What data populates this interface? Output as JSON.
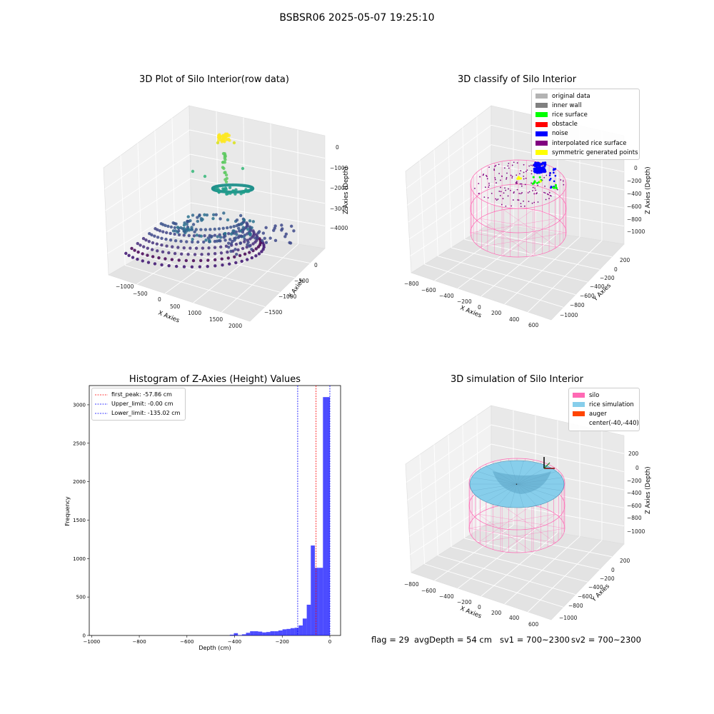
{
  "figure": {
    "title": "BSBSR06 2025-05-07 19:25:10"
  },
  "colors": {
    "pink_wire": "#ff69b4",
    "hist_bar": "#0000ff",
    "peak_line": "#ff0000",
    "limit_line": "#0000ff"
  },
  "chart_data": [
    {
      "type": "scatter",
      "title": "3D Plot of Silo Interior(row data)",
      "projection": "3d",
      "xlabel": "X Axies",
      "ylabel": "Y Axies",
      "zlabel": "Z Axies (Depth)",
      "x_ticks": [
        "−1000",
        "−500",
        "0",
        "500",
        "1000",
        "1500",
        "2000"
      ],
      "y_ticks": [
        "0",
        "−500",
        "−1000",
        "−1500"
      ],
      "z_ticks": [
        "0",
        "−1000",
        "−2000",
        "−3000",
        "−4000"
      ],
      "xlim": [
        -1300,
        2100
      ],
      "ylim": [
        -1800,
        300
      ],
      "zlim": [
        -5000,
        300
      ],
      "colormap": "viridis (by depth)",
      "clusters": [
        {
          "description": "yellow cluster near top",
          "approx_z": 0
        },
        {
          "description": "green rising points",
          "approx_z": -1000
        },
        {
          "description": "teal ring",
          "approx_z": -2000
        },
        {
          "description": "blue/purple wall rings",
          "approx_z": [
            -2800,
            -4000
          ]
        }
      ]
    },
    {
      "type": "scatter",
      "title": "3D classify of Silo Interior",
      "projection": "3d",
      "xlabel": "X Axies",
      "ylabel": "Y Axies",
      "zlabel": "Z Axies (Depth)",
      "x_ticks": [
        "−800",
        "−600",
        "−400",
        "−200",
        "0",
        "200",
        "400",
        "600"
      ],
      "y_ticks": [
        "200",
        "0",
        "−200",
        "−400",
        "−600",
        "−800",
        "−1000"
      ],
      "z_ticks": [
        "0",
        "−200",
        "−400",
        "−600",
        "−800",
        "−1000"
      ],
      "legend": [
        "original data",
        "inner wall",
        "rice surface",
        "obstacle",
        "noise",
        "interpolated rice surface",
        "symmetric generated points"
      ],
      "legend_colors": [
        "#b3b3b3",
        "#808080",
        "#00ff00",
        "#ff0000",
        "#0000ff",
        "#800080",
        "#ffff00"
      ]
    },
    {
      "type": "bar",
      "title": "Histogram of Z-Axies (Height) Values",
      "xlabel": "Depth (cm)",
      "ylabel": "Frequency",
      "xlim": [
        -1010,
        45
      ],
      "ylim": [
        0,
        3250
      ],
      "x_ticks": [
        -1000,
        -800,
        -600,
        -400,
        -200,
        0
      ],
      "y_ticks": [
        0,
        500,
        1000,
        1500,
        2000,
        2500,
        3000
      ],
      "bins": [
        {
          "start": -420,
          "end": -403,
          "value": 10
        },
        {
          "start": -403,
          "end": -386,
          "value": 30
        },
        {
          "start": -386,
          "end": -369,
          "value": 5
        },
        {
          "start": -369,
          "end": -352,
          "value": 15
        },
        {
          "start": -352,
          "end": -335,
          "value": 35
        },
        {
          "start": -335,
          "end": -318,
          "value": 55
        },
        {
          "start": -318,
          "end": -301,
          "value": 55
        },
        {
          "start": -301,
          "end": -284,
          "value": 50
        },
        {
          "start": -284,
          "end": -267,
          "value": 40
        },
        {
          "start": -267,
          "end": -250,
          "value": 45
        },
        {
          "start": -250,
          "end": -233,
          "value": 55
        },
        {
          "start": -233,
          "end": -216,
          "value": 55
        },
        {
          "start": -216,
          "end": -199,
          "value": 65
        },
        {
          "start": -199,
          "end": -182,
          "value": 80
        },
        {
          "start": -182,
          "end": -165,
          "value": 85
        },
        {
          "start": -165,
          "end": -148,
          "value": 95
        },
        {
          "start": -148,
          "end": -131,
          "value": 100
        },
        {
          "start": -131,
          "end": -114,
          "value": 130
        },
        {
          "start": -114,
          "end": -97,
          "value": 220
        },
        {
          "start": -97,
          "end": -80,
          "value": 400
        },
        {
          "start": -80,
          "end": -63,
          "value": 1170
        },
        {
          "start": -63,
          "end": -46,
          "value": 880
        },
        {
          "start": -46,
          "end": -29,
          "value": 880
        },
        {
          "start": -29,
          "end": -12,
          "value": 3100
        },
        {
          "start": -12,
          "end": 0,
          "value": 3100
        }
      ],
      "lines": [
        {
          "label": "first_peak: -57.86 cm",
          "x": -57.86,
          "color": "#ff0000"
        },
        {
          "label": "Upper_limit: -0.00 cm",
          "x": 0.0,
          "color": "#0000ff"
        },
        {
          "label": "Lower_limit: -135.02 cm",
          "x": -135.02,
          "color": "#0000ff"
        }
      ]
    },
    {
      "type": "scatter",
      "title": "3D simulation of Silo Interior",
      "projection": "3d",
      "xlabel": "X Axies",
      "ylabel": "Y Axies",
      "zlabel": "Z Axies (Depth)",
      "x_ticks": [
        "−800",
        "−600",
        "−400",
        "−200",
        "0",
        "200",
        "400",
        "600"
      ],
      "y_ticks": [
        "200",
        "0",
        "−200",
        "−400",
        "−600",
        "−800",
        "−1000"
      ],
      "z_ticks": [
        "200",
        "0",
        "−200",
        "−400",
        "−600",
        "−800",
        "−1000"
      ],
      "legend": [
        "silo",
        "rice simulation",
        "auger",
        "center(-40,-440)"
      ],
      "legend_colors": [
        "#ff69b4",
        "#87ceeb",
        "#ff4500",
        ""
      ]
    }
  ],
  "status": {
    "flag": "flag = 29",
    "avg_depth": "avgDepth = 54 cm",
    "sv1": "sv1 = 700~2300",
    "sv2": "sv2 = 700~2300"
  }
}
